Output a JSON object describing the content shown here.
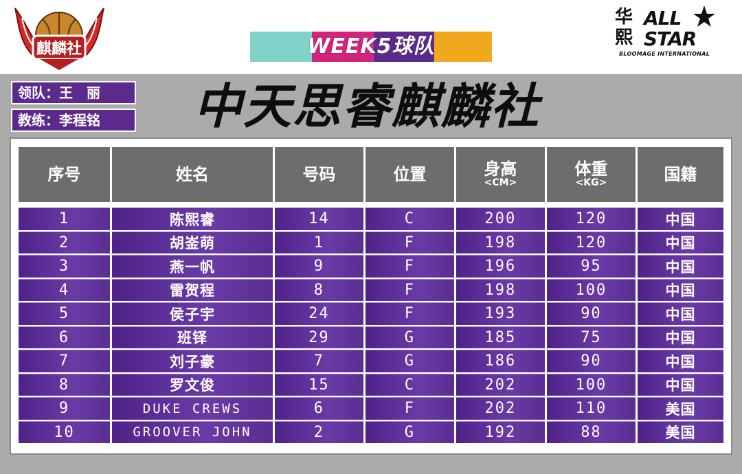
{
  "club_logo": {
    "text": "麒麟社",
    "colors": {
      "wing": "#d42a2a",
      "ball": "#c9862b",
      "banner": "#b51f1f"
    }
  },
  "brand_logo": {
    "cn": "华熙",
    "en": "ALL STAR",
    "sub": "BLOOMAGE INTERNATIONAL"
  },
  "banner": {
    "label": "WEEK5球队",
    "colors": [
      "#7fd3c9",
      "#d3237c",
      "#5b2a8c",
      "#f2a81d"
    ]
  },
  "leader": "领队：王　丽",
  "coach": "教练：李程铭",
  "team_name": "中天思睿麒麟社",
  "table": {
    "headers": [
      {
        "label": "序号"
      },
      {
        "label": "姓名"
      },
      {
        "label": "号码"
      },
      {
        "label": "位置"
      },
      {
        "label": "身高",
        "unit": "<CM>"
      },
      {
        "label": "体重",
        "unit": "<KG>"
      },
      {
        "label": "国籍"
      }
    ],
    "rows": [
      {
        "no": "1",
        "name": "陈熙睿",
        "num": "14",
        "pos": "C",
        "height": "200",
        "weight": "120",
        "nation": "中国",
        "cn": true
      },
      {
        "no": "2",
        "name": "胡崟萌",
        "num": "1",
        "pos": "F",
        "height": "198",
        "weight": "120",
        "nation": "中国",
        "cn": true
      },
      {
        "no": "3",
        "name": "燕一帆",
        "num": "9",
        "pos": "F",
        "height": "196",
        "weight": "95",
        "nation": "中国",
        "cn": true
      },
      {
        "no": "4",
        "name": "雷贺程",
        "num": "8",
        "pos": "F",
        "height": "198",
        "weight": "100",
        "nation": "中国",
        "cn": true
      },
      {
        "no": "5",
        "name": "侯子宇",
        "num": "24",
        "pos": "F",
        "height": "193",
        "weight": "90",
        "nation": "中国",
        "cn": true
      },
      {
        "no": "6",
        "name": "班铎",
        "num": "29",
        "pos": "G",
        "height": "185",
        "weight": "75",
        "nation": "中国",
        "cn": true
      },
      {
        "no": "7",
        "name": "刘子豪",
        "num": "7",
        "pos": "G",
        "height": "186",
        "weight": "90",
        "nation": "中国",
        "cn": true
      },
      {
        "no": "8",
        "name": "罗文俊",
        "num": "15",
        "pos": "C",
        "height": "202",
        "weight": "100",
        "nation": "中国",
        "cn": true
      },
      {
        "no": "9",
        "name": "DUKE CREWS",
        "num": "6",
        "pos": "F",
        "height": "202",
        "weight": "110",
        "nation": "美国",
        "cn": false
      },
      {
        "no": "10",
        "name": "GROOVER JOHN",
        "num": "2",
        "pos": "G",
        "height": "192",
        "weight": "88",
        "nation": "美国",
        "cn": false
      }
    ]
  }
}
